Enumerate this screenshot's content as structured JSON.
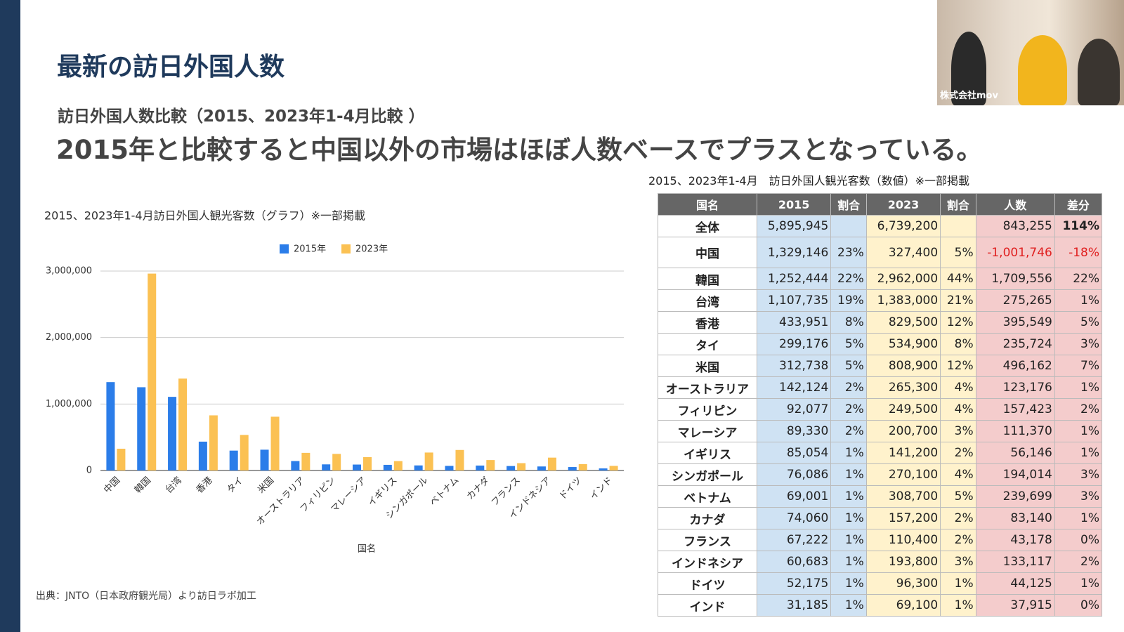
{
  "slide": {
    "title": "最新の訪日外国人数",
    "subtitle": "訪日外国人数比較（2015、2023年1-4月比較 ）",
    "headline": "2015年と比較すると中国以外の市場はほぼ人数ベースでプラスとなっている。",
    "source": "出典：JNTO（日本政府観光局）より訪日ラボ加工",
    "video_label": "株式会社mov"
  },
  "chart_data": {
    "type": "bar",
    "title": "2015、2023年1-4月訪日外国人観光客数（グラフ）※一部掲載",
    "x_label": "国名",
    "categories": [
      "中国",
      "韓国",
      "台湾",
      "香港",
      "タイ",
      "米国",
      "オーストラリア",
      "フィリピン",
      "マレーシア",
      "イギリス",
      "シンガポール",
      "ベトナム",
      "カナダ",
      "フランス",
      "インドネシア",
      "ドイツ",
      "インド"
    ],
    "series": [
      {
        "name": "2015年",
        "color": "#2b7de9",
        "values": [
          1329146,
          1252444,
          1107735,
          433951,
          299176,
          312738,
          142124,
          92077,
          89330,
          85054,
          76086,
          69001,
          74060,
          67222,
          60683,
          52175,
          31185
        ]
      },
      {
        "name": "2023年",
        "color": "#fbc153",
        "values": [
          327400,
          2962000,
          1383000,
          829500,
          534900,
          808900,
          265300,
          249500,
          200700,
          141200,
          270100,
          308700,
          157200,
          110400,
          193800,
          96300,
          69100
        ]
      }
    ],
    "ylim": [
      0,
      3000000
    ],
    "yticks": [
      0,
      {
        "value": 1000000,
        "label": "1,000,000"
      },
      {
        "value": 2000000,
        "label": "2,000,000"
      },
      {
        "value": 3000000,
        "label": "3,000,000"
      }
    ],
    "grid": true,
    "legend": "top"
  },
  "table": {
    "caption": "2015、2023年1-4月　訪日外国人観光客数（数値）※一部掲載",
    "header": [
      "国名",
      "2015",
      "割合",
      "2023",
      "割合",
      "人数",
      "差分"
    ],
    "rows": [
      [
        "全体",
        "5,895,945",
        null,
        "6,739,200",
        null,
        "843,255",
        "114%"
      ],
      [
        "中国",
        "1,329,146",
        "23%",
        "327,400",
        "5%",
        "-1,001,746",
        "-18%"
      ],
      [
        "韓国",
        "1,252,444",
        "22%",
        "2,962,000",
        "44%",
        "1,709,556",
        "22%"
      ],
      [
        "台湾",
        "1,107,735",
        "19%",
        "1,383,000",
        "21%",
        "275,265",
        "1%"
      ],
      [
        "香港",
        "433,951",
        "8%",
        "829,500",
        "12%",
        "395,549",
        "5%"
      ],
      [
        "タイ",
        "299,176",
        "5%",
        "534,900",
        "8%",
        "235,724",
        "3%"
      ],
      [
        "米国",
        "312,738",
        "5%",
        "808,900",
        "12%",
        "496,162",
        "7%"
      ],
      [
        "オーストラリア",
        "142,124",
        "2%",
        "265,300",
        "4%",
        "123,176",
        "1%"
      ],
      [
        "フィリピン",
        "92,077",
        "2%",
        "249,500",
        "4%",
        "157,423",
        "2%"
      ],
      [
        "マレーシア",
        "89,330",
        "2%",
        "200,700",
        "3%",
        "111,370",
        "1%"
      ],
      [
        "イギリス",
        "85,054",
        "1%",
        "141,200",
        "2%",
        "56,146",
        "1%"
      ],
      [
        "シンガポール",
        "76,086",
        "1%",
        "270,100",
        "4%",
        "194,014",
        "3%"
      ],
      [
        "ベトナム",
        "69,001",
        "1%",
        "308,700",
        "5%",
        "239,699",
        "3%"
      ],
      [
        "カナダ",
        "74,060",
        "1%",
        "157,200",
        "2%",
        "83,140",
        "1%"
      ],
      [
        "フランス",
        "67,222",
        "1%",
        "110,400",
        "2%",
        "43,178",
        "0%"
      ],
      [
        "インドネシア",
        "60,683",
        "1%",
        "193,800",
        "3%",
        "133,117",
        "2%"
      ],
      [
        "ドイツ",
        "52,175",
        "1%",
        "96,300",
        "1%",
        "44,125",
        "1%"
      ],
      [
        "インド",
        "31,185",
        "1%",
        "69,100",
        "1%",
        "37,915",
        "0%"
      ]
    ]
  }
}
